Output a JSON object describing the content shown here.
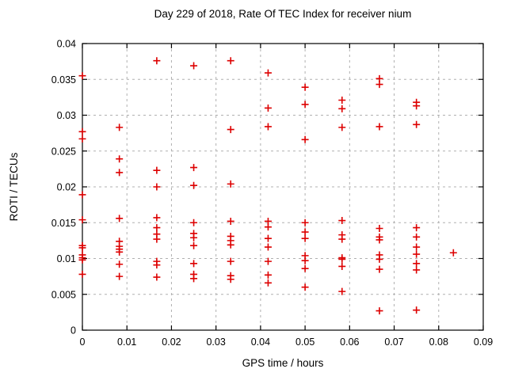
{
  "chart_data": {
    "type": "scatter",
    "title": "Day 229 of 2018, Rate Of TEC Index for receiver nium",
    "xlabel": "GPS time / hours",
    "ylabel": "ROTI / TECUs",
    "xlim": [
      0,
      0.09
    ],
    "ylim": [
      0,
      0.04
    ],
    "grid": "dashed",
    "legend": "none",
    "marker": "plus",
    "marker_color": "#dd0000",
    "grid_color": "#b0b0b0",
    "axis_color": "#000000",
    "x_ticks": [
      {
        "v": 0.0,
        "label": "0"
      },
      {
        "v": 0.01,
        "label": "0.01"
      },
      {
        "v": 0.02,
        "label": "0.02"
      },
      {
        "v": 0.03,
        "label": "0.03"
      },
      {
        "v": 0.04,
        "label": "0.04"
      },
      {
        "v": 0.05,
        "label": "0.05"
      },
      {
        "v": 0.06,
        "label": "0.06"
      },
      {
        "v": 0.07,
        "label": "0.07"
      },
      {
        "v": 0.08,
        "label": "0.08"
      },
      {
        "v": 0.09,
        "label": "0.09"
      }
    ],
    "y_ticks": [
      {
        "v": 0.0,
        "label": "0"
      },
      {
        "v": 0.005,
        "label": "0.005"
      },
      {
        "v": 0.01,
        "label": "0.01"
      },
      {
        "v": 0.015,
        "label": "0.015"
      },
      {
        "v": 0.02,
        "label": "0.02"
      },
      {
        "v": 0.025,
        "label": "0.025"
      },
      {
        "v": 0.03,
        "label": "0.03"
      },
      {
        "v": 0.035,
        "label": "0.035"
      },
      {
        "v": 0.04,
        "label": "0.04"
      }
    ],
    "epochs": [
      {
        "x": 0.0,
        "values": [
          0.0355,
          0.0277,
          0.0267,
          0.0189,
          0.0154,
          0.0118,
          0.0115,
          0.0105,
          0.0101,
          0.0098,
          0.0078
        ]
      },
      {
        "x": 0.0083,
        "values": [
          0.0283,
          0.0239,
          0.022,
          0.0156,
          0.0124,
          0.0117,
          0.0113,
          0.0109,
          0.0092,
          0.0075
        ]
      },
      {
        "x": 0.0167,
        "values": [
          0.0376,
          0.0223,
          0.02,
          0.0157,
          0.0143,
          0.0134,
          0.0127,
          0.0096,
          0.0091,
          0.0074
        ]
      },
      {
        "x": 0.025,
        "values": [
          0.0369,
          0.0227,
          0.0202,
          0.015,
          0.0135,
          0.0129,
          0.0118,
          0.0093,
          0.0078,
          0.0072
        ]
      },
      {
        "x": 0.0333,
        "values": [
          0.0376,
          0.028,
          0.0204,
          0.0152,
          0.0131,
          0.0125,
          0.0119,
          0.0096,
          0.0076,
          0.0071
        ]
      },
      {
        "x": 0.0417,
        "values": [
          0.0359,
          0.031,
          0.0284,
          0.0152,
          0.0144,
          0.0128,
          0.0116,
          0.0096,
          0.0077,
          0.0066
        ]
      },
      {
        "x": 0.05,
        "values": [
          0.0339,
          0.0315,
          0.0266,
          0.015,
          0.0137,
          0.0128,
          0.0104,
          0.0097,
          0.0086,
          0.006
        ]
      },
      {
        "x": 0.0583,
        "values": [
          0.0321,
          0.0309,
          0.0283,
          0.0153,
          0.0133,
          0.0127,
          0.0101,
          0.0099,
          0.0089,
          0.0054
        ]
      },
      {
        "x": 0.0667,
        "values": [
          0.0351,
          0.0343,
          0.0284,
          0.0142,
          0.013,
          0.0126,
          0.0105,
          0.0099,
          0.0085,
          0.0027
        ]
      },
      {
        "x": 0.075,
        "values": [
          0.0318,
          0.0313,
          0.0287,
          0.0143,
          0.013,
          0.0116,
          0.0106,
          0.0093,
          0.0084,
          0.0028
        ]
      },
      {
        "x": 0.0833,
        "values": [
          0.0108
        ]
      }
    ]
  }
}
